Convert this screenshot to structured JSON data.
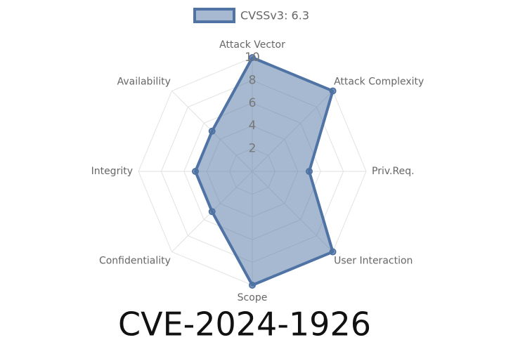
{
  "chart_data": {
    "type": "radar",
    "title": "CVE-2024-1926",
    "categories": [
      "Attack Vector",
      "Attack Complexity",
      "Priv.Req.",
      "User Interaction",
      "Scope",
      "Confidentiality",
      "Integrity",
      "Availability"
    ],
    "series": [
      {
        "name": "CVSSv3: 6.3",
        "color": "#4e73a4",
        "values": [
          10,
          10,
          5,
          10,
          10,
          5,
          5,
          5
        ]
      }
    ],
    "rlim": [
      0,
      10
    ],
    "rticks": [
      2,
      4,
      6,
      8,
      10
    ],
    "grid": true
  }
}
